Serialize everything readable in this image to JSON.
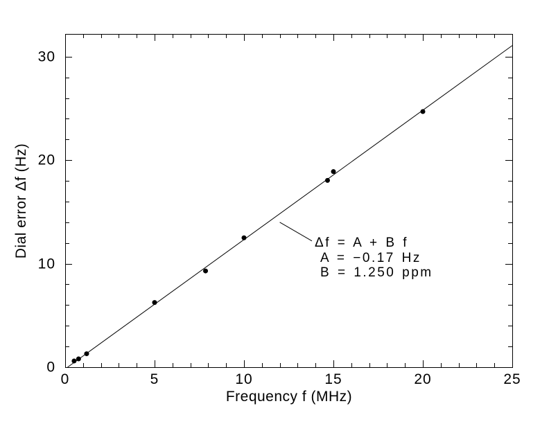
{
  "figure": {
    "background": "#ffffff",
    "ink": "#000000"
  },
  "chart_data": {
    "type": "scatter",
    "title": "",
    "xlabel": "Frequency f (MHz)",
    "ylabel": "Dial error Δf (Hz)",
    "xlim": [
      0,
      25
    ],
    "ylim": [
      0,
      32.2
    ],
    "x_major_ticks": [
      0,
      5,
      10,
      15,
      20,
      25
    ],
    "x_minor_step": 1,
    "y_major_ticks": [
      0,
      10,
      20,
      30
    ],
    "y_minor_step": 2,
    "grid": false,
    "legend": "none",
    "marker": {
      "shape": "filled-circle",
      "radius_px": 3.5
    },
    "points": [
      {
        "f": 0.5,
        "df": 0.6
      },
      {
        "f": 0.75,
        "df": 0.8
      },
      {
        "f": 1.2,
        "df": 1.3
      },
      {
        "f": 5.0,
        "df": 6.25
      },
      {
        "f": 7.85,
        "df": 9.3
      },
      {
        "f": 10.0,
        "df": 12.5
      },
      {
        "f": 14.67,
        "df": 18.05
      },
      {
        "f": 15.0,
        "df": 18.9
      },
      {
        "f": 20.0,
        "df": 24.7
      }
    ],
    "fit": {
      "A_hz": -0.17,
      "B_ppm": 1.25,
      "x_end": 25
    },
    "leader_line": {
      "from_f": 12.0,
      "from_df": 14.0,
      "to_f": 13.8,
      "to_df": 12.2
    },
    "annotation": {
      "line1": "Δf = A + B f",
      "line2": "A = −0.17 Hz",
      "line3": "B = 1.250 ppm"
    }
  }
}
